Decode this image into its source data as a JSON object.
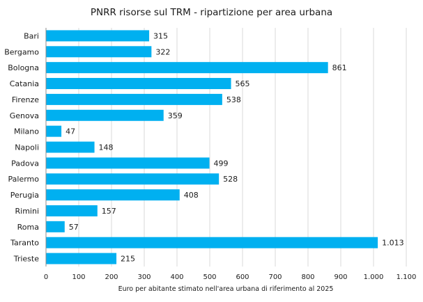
{
  "chart_data": {
    "type": "bar",
    "orientation": "horizontal",
    "title": "PNRR risorse sul TRM - ripartizione per area urbana",
    "xlabel": "Euro per abitante stimato nell'area urbana di riferimento al 2025",
    "ylabel": "",
    "categories": [
      "Bari",
      "Bergamo",
      "Bologna",
      "Catania",
      "Firenze",
      "Genova",
      "Milano",
      "Napoli",
      "Padova",
      "Palermo",
      "Perugia",
      "Rimini",
      "Roma",
      "Taranto",
      "Trieste"
    ],
    "values": [
      315,
      322,
      861,
      565,
      538,
      359,
      47,
      148,
      499,
      528,
      408,
      157,
      57,
      1013,
      215
    ],
    "value_labels": [
      "315",
      "322",
      "861",
      "565",
      "538",
      "359",
      "47",
      "148",
      "499",
      "528",
      "408",
      "157",
      "57",
      "1.013",
      "215"
    ],
    "xlim": [
      0,
      1100
    ],
    "ticks": [
      0,
      100,
      200,
      300,
      400,
      500,
      600,
      700,
      800,
      900,
      1000,
      1100
    ],
    "tick_labels": [
      "0",
      "100",
      "200",
      "300",
      "400",
      "500",
      "600",
      "700",
      "800",
      "900",
      "1.000",
      "1.100"
    ],
    "grid": true,
    "bar_color": "#00b0f0"
  }
}
